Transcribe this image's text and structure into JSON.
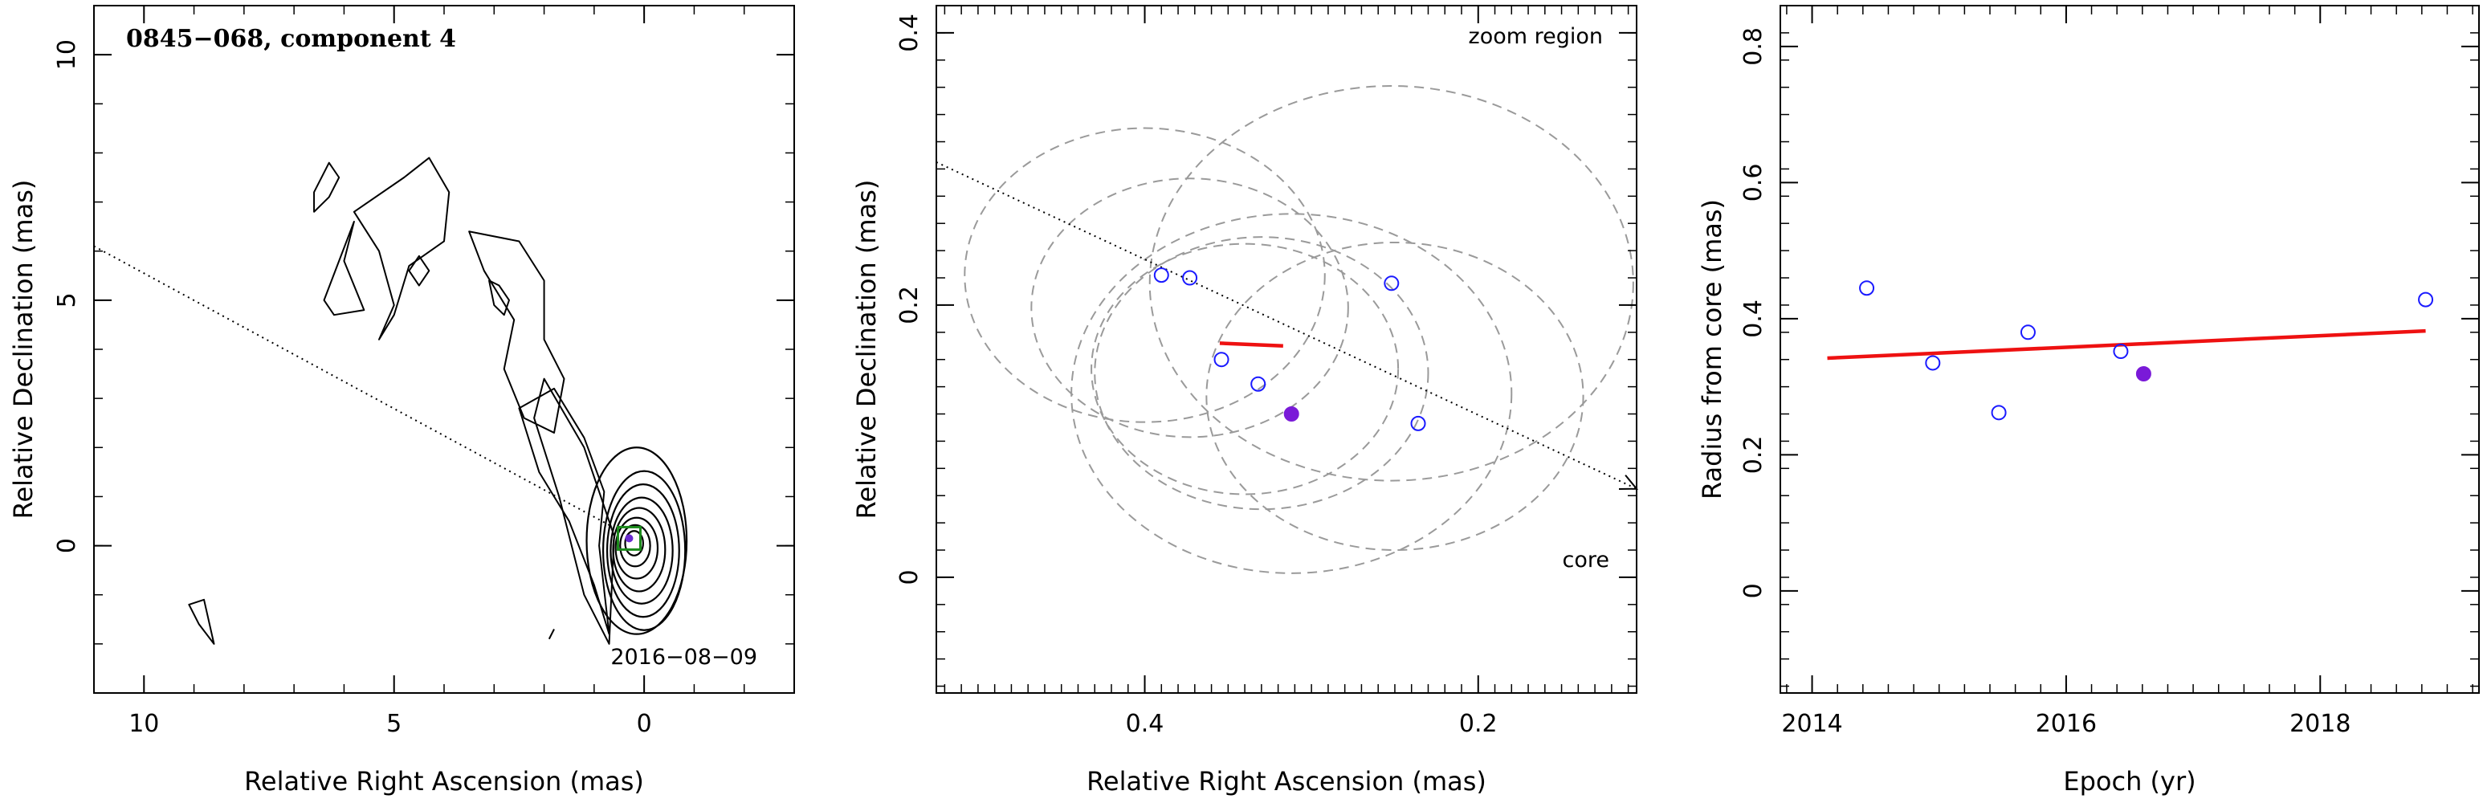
{
  "chart_data": [
    {
      "type": "contour",
      "title": "0845−068, component 4",
      "annotation": "2016−08−09",
      "xlabel": "Relative Right Ascension (mas)",
      "ylabel": "Relative Declination (mas)",
      "xlim": [
        11,
        -3
      ],
      "ylim": [
        -3,
        11
      ],
      "x_ticks": [
        10,
        5,
        0
      ],
      "y_ticks": [
        0,
        5,
        10
      ],
      "core_position": [
        0.3,
        0.15
      ],
      "ridge_line": {
        "from": [
          11,
          6.1
        ],
        "to": [
          0.3,
          0.2
        ]
      },
      "contours": [
        {
          "cx": 0.2,
          "cy": 0.05,
          "rx": 0.18,
          "ry": 0.25
        },
        {
          "cx": 0.18,
          "cy": 0.0,
          "rx": 0.3,
          "ry": 0.42
        },
        {
          "cx": 0.15,
          "cy": -0.05,
          "rx": 0.42,
          "ry": 0.62
        },
        {
          "cx": 0.1,
          "cy": -0.08,
          "rx": 0.52,
          "ry": 0.85
        },
        {
          "cx": 0.05,
          "cy": -0.1,
          "rx": 0.62,
          "ry": 1.08
        },
        {
          "cx": 0.02,
          "cy": -0.1,
          "rx": 0.72,
          "ry": 1.35
        },
        {
          "cx": 0.0,
          "cy": -0.1,
          "rx": 0.82,
          "ry": 1.62
        },
        {
          "cx": 0.15,
          "cy": 0.1,
          "rx": 1.0,
          "ry": 1.9
        }
      ],
      "outer_contours": [
        [
          [
            0.7,
            -1.8
          ],
          [
            0.9,
            0.0
          ],
          [
            0.8,
            1.1
          ],
          [
            1.2,
            2.2
          ],
          [
            1.8,
            3.2
          ],
          [
            2.5,
            2.8
          ],
          [
            2.1,
            1.5
          ],
          [
            1.5,
            0.5
          ],
          [
            1.0,
            -0.8
          ]
        ],
        [
          [
            0.7,
            -2.0
          ],
          [
            0.6,
            0.2
          ],
          [
            1.2,
            2.0
          ],
          [
            2.0,
            3.4
          ],
          [
            2.2,
            2.6
          ],
          [
            1.7,
            1.0
          ],
          [
            1.2,
            -1.0
          ]
        ],
        [
          [
            1.8,
            2.3
          ],
          [
            1.6,
            3.4
          ],
          [
            2.0,
            4.2
          ],
          [
            2.0,
            5.4
          ],
          [
            2.5,
            6.2
          ],
          [
            3.5,
            6.4
          ],
          [
            3.2,
            5.6
          ],
          [
            2.6,
            4.6
          ],
          [
            2.8,
            3.6
          ],
          [
            2.4,
            2.6
          ]
        ],
        [
          [
            4.0,
            6.2
          ],
          [
            3.9,
            7.2
          ],
          [
            4.3,
            7.9
          ],
          [
            4.8,
            7.5
          ],
          [
            5.8,
            6.8
          ],
          [
            5.3,
            6.0
          ],
          [
            5.0,
            4.9
          ],
          [
            5.3,
            4.2
          ],
          [
            5.0,
            4.7
          ],
          [
            4.7,
            5.7
          ]
        ],
        [
          [
            5.6,
            4.8
          ],
          [
            6.0,
            5.8
          ],
          [
            5.8,
            6.6
          ],
          [
            6.4,
            5.0
          ],
          [
            6.2,
            4.7
          ]
        ],
        [
          [
            6.6,
            6.8
          ],
          [
            6.3,
            7.1
          ],
          [
            6.1,
            7.5
          ],
          [
            6.3,
            7.8
          ],
          [
            6.6,
            7.2
          ]
        ],
        [
          [
            2.7,
            5.0
          ],
          [
            2.9,
            5.3
          ],
          [
            3.1,
            5.4
          ],
          [
            3.0,
            4.9
          ],
          [
            2.8,
            4.7
          ]
        ],
        [
          [
            4.3,
            5.6
          ],
          [
            4.5,
            5.9
          ],
          [
            4.7,
            5.6
          ],
          [
            4.5,
            5.3
          ]
        ],
        [
          [
            8.6,
            -2.0
          ],
          [
            8.9,
            -1.6
          ],
          [
            9.1,
            -1.2
          ],
          [
            8.8,
            -1.1
          ]
        ],
        [
          [
            1.8,
            -1.7
          ],
          [
            1.9,
            -1.9
          ]
        ]
      ],
      "box_color": "#1a8a1a"
    },
    {
      "type": "scatter",
      "annotations": [
        "zoom region",
        "core"
      ],
      "xlabel": "Relative Right Ascension (mas)",
      "ylabel": "Relative Declination (mas)",
      "xlim": [
        0.525,
        0.105
      ],
      "ylim": [
        -0.085,
        0.42
      ],
      "x_ticks": [
        0.4,
        0.2
      ],
      "y_ticks": [
        0,
        0.2,
        0.4
      ],
      "points": [
        {
          "x": 0.39,
          "y": 0.222,
          "filled": false
        },
        {
          "x": 0.373,
          "y": 0.22,
          "filled": false
        },
        {
          "x": 0.354,
          "y": 0.16,
          "filled": false
        },
        {
          "x": 0.332,
          "y": 0.142,
          "filled": false
        },
        {
          "x": 0.252,
          "y": 0.216,
          "filled": false
        },
        {
          "x": 0.236,
          "y": 0.113,
          "filled": false
        },
        {
          "x": 0.312,
          "y": 0.12,
          "filled": true
        }
      ],
      "error_circles": [
        {
          "cx": 0.4,
          "cy": 0.222,
          "r": 0.108
        },
        {
          "cx": 0.373,
          "cy": 0.198,
          "r": 0.095
        },
        {
          "cx": 0.34,
          "cy": 0.153,
          "r": 0.092
        },
        {
          "cx": 0.33,
          "cy": 0.15,
          "r": 0.1
        },
        {
          "cx": 0.252,
          "cy": 0.216,
          "r": 0.145
        },
        {
          "cx": 0.25,
          "cy": 0.133,
          "r": 0.113
        },
        {
          "cx": 0.312,
          "cy": 0.135,
          "r": 0.132
        }
      ],
      "fit_segment": {
        "from": [
          0.355,
          0.172
        ],
        "to": [
          0.317,
          0.17
        ]
      },
      "direction_arrow": {
        "from": [
          0.525,
          0.305
        ],
        "to": [
          0.105,
          0.065
        ]
      },
      "colors": {
        "points": "#1a1aff",
        "filled_point": "#7a1ad8",
        "fit": "#ee1111",
        "circles": "#9a9a9a"
      }
    },
    {
      "type": "scatter",
      "xlabel": "Epoch (yr)",
      "ylabel": "Radius from core (mas)",
      "xlim": [
        2013.75,
        2019.25
      ],
      "ylim": [
        -0.15,
        0.86
      ],
      "x_ticks": [
        2014,
        2016,
        2018
      ],
      "y_ticks": [
        0,
        0.2,
        0.4,
        0.6,
        0.8
      ],
      "points": [
        {
          "x": 2014.43,
          "y": 0.445,
          "filled": false
        },
        {
          "x": 2014.95,
          "y": 0.335,
          "filled": false
        },
        {
          "x": 2015.47,
          "y": 0.262,
          "filled": false
        },
        {
          "x": 2015.7,
          "y": 0.38,
          "filled": false
        },
        {
          "x": 2016.43,
          "y": 0.352,
          "filled": false
        },
        {
          "x": 2016.61,
          "y": 0.319,
          "filled": true
        },
        {
          "x": 2018.83,
          "y": 0.428,
          "filled": false
        }
      ],
      "fit_line": {
        "x": [
          2014.12,
          2018.83
        ],
        "y": [
          0.342,
          0.382
        ]
      },
      "colors": {
        "points": "#1a1aff",
        "filled_point": "#7a1ad8",
        "fit": "#ee1111"
      }
    }
  ]
}
